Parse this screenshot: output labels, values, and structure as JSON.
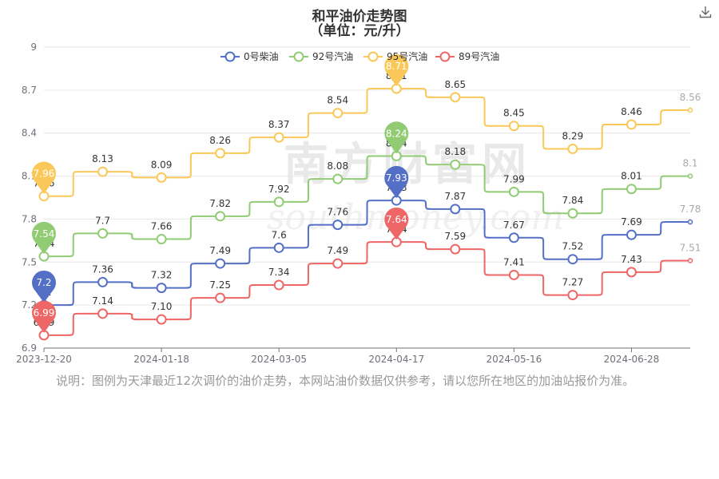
{
  "page": {
    "title": "和平油价走势图",
    "subtitle": "（单位：元/升）",
    "watermark": "南方财富网",
    "watermark_latin": "southmoney.com",
    "note": "说明：图例为天津最近12次调价的油价走势，本网站油价数据仅供参考，请以您所在地区的加油站报价为准。",
    "icons": {
      "download": "download-icon"
    }
  },
  "chart_data": {
    "type": "line",
    "title": "和平油价走势图",
    "subtitle": "（单位：元/升）",
    "x": [
      "2023-12-20",
      "",
      "2024-01-18",
      "",
      "2024-03-05",
      "",
      "2024-04-17",
      "",
      "2024-05-16",
      "",
      "2024-06-28",
      ""
    ],
    "x_tick_labels": [
      "2023-12-20",
      "2024-01-18",
      "2024-03-05",
      "2024-04-17",
      "2024-05-16",
      "2024-06-28"
    ],
    "y_ticks": [
      "6.9",
      "7.2",
      "7.5",
      "7.8",
      "8.1",
      "8.4",
      "8.7",
      "9"
    ],
    "ylim": [
      6.9,
      9
    ],
    "grid": true,
    "legend_position": "top",
    "series": [
      {
        "name": "0号柴油",
        "color": "#5470c6",
        "values": [
          7.2,
          7.36,
          7.32,
          7.49,
          7.6,
          7.76,
          7.93,
          7.87,
          7.67,
          7.52,
          7.69,
          7.78
        ],
        "labels": [
          "7.2",
          "7.36",
          "7.32",
          "7.49",
          "7.6",
          "7.76",
          "7.93",
          "7.87",
          "7.67",
          "7.52",
          "7.69",
          "7.78"
        ],
        "max_index": 6,
        "min_index": 0
      },
      {
        "name": "92号汽油",
        "color": "#91cc75",
        "values": [
          7.54,
          7.7,
          7.66,
          7.82,
          7.92,
          8.08,
          8.24,
          8.18,
          7.99,
          7.84,
          8.01,
          8.1
        ],
        "labels": [
          "7.54",
          "7.7",
          "7.66",
          "7.82",
          "7.92",
          "8.08",
          "8.24",
          "8.18",
          "7.99",
          "7.84",
          "8.01",
          "8.1"
        ],
        "max_index": 6,
        "min_index": 0
      },
      {
        "name": "95号汽油",
        "color": "#fac858",
        "values": [
          7.96,
          8.13,
          8.09,
          8.26,
          8.37,
          8.54,
          8.71,
          8.65,
          8.45,
          8.29,
          8.46,
          8.56
        ],
        "labels": [
          "7.96",
          "8.13",
          "8.09",
          "8.26",
          "8.37",
          "8.54",
          "8.71",
          "8.65",
          "8.45",
          "8.29",
          "8.46",
          "8.56"
        ],
        "max_index": 6,
        "min_index": 0
      },
      {
        "name": "89号汽油",
        "color": "#ee6666",
        "values": [
          6.99,
          7.14,
          7.1,
          7.25,
          7.34,
          7.49,
          7.64,
          7.59,
          7.41,
          7.27,
          7.43,
          7.51
        ],
        "labels": [
          "6.99",
          "7.14",
          "7.10",
          "7.25",
          "7.34",
          "7.49",
          "7.64",
          "7.59",
          "7.41",
          "7.27",
          "7.43",
          "7.51"
        ],
        "max_index": 6,
        "min_index": 0
      }
    ]
  }
}
